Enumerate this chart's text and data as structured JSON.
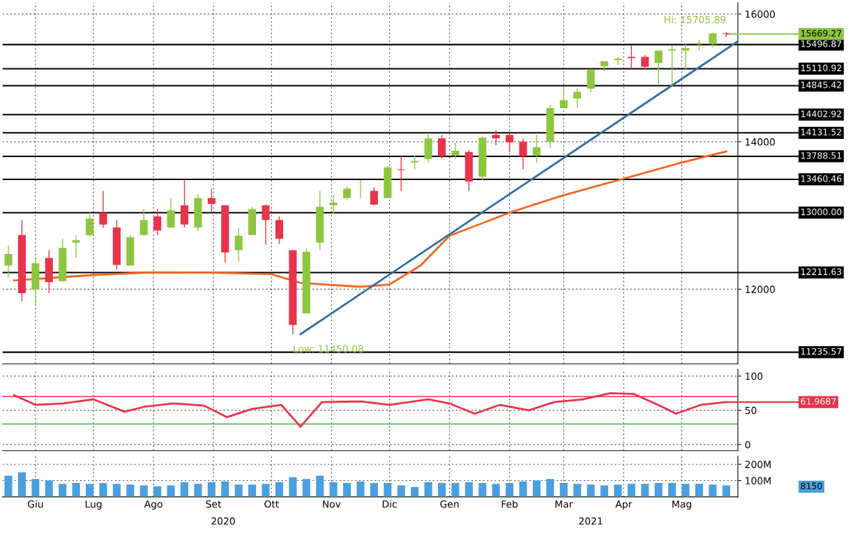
{
  "chart_data": [
    {
      "type": "candlestick",
      "log": true,
      "grid": true,
      "tick_labels": "y",
      "x": [
        "2020-06-01",
        "2020-06-08",
        "2020-06-15",
        "2020-06-22",
        "2020-06-29",
        "2020-07-06",
        "2020-07-13",
        "2020-07-20",
        "2020-07-27",
        "2020-08-03",
        "2020-08-10",
        "2020-08-17",
        "2020-08-24",
        "2020-08-31",
        "2020-09-07",
        "2020-09-14",
        "2020-09-21",
        "2020-09-28",
        "2020-10-05",
        "2020-10-12",
        "2020-10-19",
        "2020-10-26",
        "2020-11-02",
        "2020-11-09",
        "2020-11-16",
        "2020-11-23",
        "2020-11-30",
        "2020-12-07",
        "2020-12-14",
        "2020-12-21",
        "2020-12-28",
        "2021-01-04",
        "2021-01-11",
        "2021-01-18",
        "2021-01-25",
        "2021-02-01",
        "2021-02-08",
        "2021-02-15",
        "2021-02-22",
        "2021-03-01",
        "2021-03-08",
        "2021-03-15",
        "2021-03-22",
        "2021-03-29",
        "2021-04-05",
        "2021-04-12",
        "2021-04-19",
        "2021-04-26",
        "2021-05-03",
        "2021-05-10",
        "2021-05-17",
        "2021-05-24",
        "2021-05-31",
        "2021-06-07"
      ],
      "ohlc": [
        [
          12300,
          12560,
          12150,
          12450
        ],
        [
          12700,
          12900,
          11850,
          11950
        ],
        [
          12000,
          12400,
          11800,
          12330
        ],
        [
          12400,
          12500,
          11950,
          12090
        ],
        [
          12100,
          12650,
          12100,
          12530
        ],
        [
          12600,
          12700,
          12400,
          12630
        ],
        [
          12700,
          13000,
          12680,
          12920
        ],
        [
          13000,
          13300,
          12800,
          12840
        ],
        [
          12800,
          12900,
          12250,
          12310
        ],
        [
          12300,
          12700,
          12300,
          12670
        ],
        [
          12700,
          13050,
          12700,
          12900
        ],
        [
          12950,
          13050,
          12700,
          12760
        ],
        [
          12800,
          13200,
          12800,
          13030
        ],
        [
          13100,
          13460,
          12800,
          12840
        ],
        [
          12800,
          13250,
          12750,
          13200
        ],
        [
          13200,
          13330,
          13000,
          13120
        ],
        [
          13100,
          13100,
          12340,
          12470
        ],
        [
          12500,
          12800,
          12350,
          12690
        ],
        [
          12700,
          13080,
          12700,
          13050
        ],
        [
          13100,
          13110,
          12570,
          12900
        ],
        [
          12900,
          12950,
          12580,
          12650
        ],
        [
          12500,
          12500,
          11450,
          11560
        ],
        [
          11700,
          12520,
          11700,
          12480
        ],
        [
          12600,
          13300,
          12500,
          13080
        ],
        [
          13100,
          13240,
          12980,
          13140
        ],
        [
          13200,
          13360,
          13170,
          13330
        ],
        [
          13300,
          13450,
          13200,
          13300
        ],
        [
          13300,
          13350,
          13100,
          13110
        ],
        [
          13200,
          13650,
          13200,
          13630
        ],
        [
          13600,
          13800,
          13300,
          13590
        ],
        [
          13700,
          13800,
          13600,
          13720
        ],
        [
          13750,
          14130,
          13700,
          14050
        ],
        [
          14050,
          14100,
          13750,
          13790
        ],
        [
          13800,
          13980,
          13750,
          13870
        ],
        [
          13850,
          13880,
          13300,
          13430
        ],
        [
          13500,
          14070,
          13450,
          14060
        ],
        [
          14100,
          14170,
          13950,
          14050
        ],
        [
          14100,
          14100,
          13850,
          13990
        ],
        [
          14000,
          14050,
          13600,
          13790
        ],
        [
          13800,
          14100,
          13700,
          13920
        ],
        [
          14000,
          14550,
          13900,
          14500
        ],
        [
          14500,
          14800,
          14500,
          14620
        ],
        [
          14650,
          14800,
          14500,
          14750
        ],
        [
          14800,
          15100,
          14750,
          15100
        ],
        [
          15150,
          15230,
          15070,
          15230
        ],
        [
          15250,
          15300,
          15170,
          15270
        ],
        [
          15300,
          15490,
          15110,
          15280
        ],
        [
          15300,
          15330,
          15100,
          15140
        ],
        [
          15200,
          15400,
          14850,
          15400
        ],
        [
          15400,
          15480,
          14850,
          15420
        ],
        [
          15400,
          15500,
          15100,
          15440
        ],
        [
          15500,
          15570,
          15400,
          15520
        ],
        [
          15500,
          15690,
          15450,
          15680
        ],
        [
          15680,
          15700,
          15620,
          15669
        ]
      ],
      "series": [
        {
          "type": "line",
          "color": "#f26522",
          "x": [
            "2020-06-04",
            "2020-07-15",
            "2020-08-15",
            "2020-09-15",
            "2020-10-15",
            "2020-10-30",
            "2020-11-30",
            "2020-12-15",
            "2020-12-31",
            "2021-01-15",
            "2021-02-15",
            "2021-03-15",
            "2021-04-15",
            "2021-05-15",
            "2021-06-07"
          ],
          "values": [
            12110,
            12180,
            12215,
            12210,
            12190,
            12080,
            12030,
            12060,
            12300,
            12690,
            13000,
            13240,
            13470,
            13700,
            13860
          ]
        },
        {
          "type": "line",
          "color": "#2e6da4",
          "x": [
            "2020-10-30",
            "2021-06-13"
          ],
          "values": [
            11450,
            15550
          ]
        }
      ],
      "xlim": [
        "2020-05-29",
        "2021-06-13"
      ],
      "ylim": [
        11100,
        16190
      ],
      "yticks": [
        12000,
        14000,
        16000
      ],
      "ref_lines": [
        {
          "axis": "y",
          "value": 15496.87,
          "label": "15496.87",
          "color": "#000000"
        },
        {
          "axis": "y",
          "value": 15110.92,
          "label": "15110.92",
          "color": "#000000"
        },
        {
          "axis": "y",
          "value": 14845.42,
          "label": "14845.42",
          "color": "#000000"
        },
        {
          "axis": "y",
          "value": 14402.92,
          "label": "14402.92",
          "color": "#000000"
        },
        {
          "axis": "y",
          "value": 14131.52,
          "label": "14131.52",
          "color": "#000000"
        },
        {
          "axis": "y",
          "value": 13788.51,
          "label": "13788.51",
          "color": "#000000"
        },
        {
          "axis": "y",
          "value": 13460.46,
          "label": "13460.46",
          "color": "#000000"
        },
        {
          "axis": "y",
          "value": 13000.0,
          "label": "13000.00",
          "color": "#000000"
        },
        {
          "axis": "y",
          "value": 12211.63,
          "label": "12211.63",
          "color": "#000000"
        },
        {
          "axis": "y",
          "value": 11235.57,
          "label": "11235.57",
          "color": "#000000"
        }
      ],
      "annotations": [
        {
          "text": "Hi: 15705.89",
          "x": "2021-06-07",
          "y": 15700
        },
        {
          "text": "Low: 11450.08",
          "x": "2020-10-26",
          "y": 11450
        },
        {
          "text": "15669.27",
          "x": "2021-06-07",
          "y": 15669
        }
      ]
    },
    {
      "type": "line",
      "grid": true,
      "tick_labels": "y",
      "x": [
        "2020-06-04",
        "2020-06-15",
        "2020-06-29",
        "2020-07-15",
        "2020-07-31",
        "2020-08-10",
        "2020-08-25",
        "2020-09-10",
        "2020-09-22",
        "2020-10-05",
        "2020-10-20",
        "2020-10-30",
        "2020-11-10",
        "2020-11-30",
        "2020-12-15",
        "2021-01-04",
        "2021-01-15",
        "2021-01-28",
        "2021-02-10",
        "2021-02-25",
        "2021-03-10",
        "2021-03-25",
        "2021-04-08",
        "2021-04-20",
        "2021-05-05",
        "2021-05-12",
        "2021-05-25",
        "2021-06-07"
      ],
      "series": [
        {
          "color": "#e8334a",
          "values": [
            72,
            58,
            60,
            66,
            48,
            55,
            60,
            57,
            40,
            52,
            58,
            26,
            62,
            63,
            58,
            66,
            60,
            45,
            58,
            50,
            62,
            66,
            75,
            74,
            55,
            45,
            58,
            62
          ]
        }
      ],
      "xlim": [
        "2020-05-29",
        "2021-06-13"
      ],
      "ylim": [
        -9,
        110
      ],
      "yticks": [
        0,
        50,
        100
      ],
      "ref_lines": [
        {
          "axis": "y",
          "value": 70,
          "color": "#e8334a"
        },
        {
          "axis": "y",
          "value": 30,
          "color": "#39b54a"
        }
      ],
      "annotations": [
        {
          "text": "61.9687",
          "x": "2021-06-07",
          "y": 62
        }
      ]
    },
    {
      "type": "bar",
      "grid": true,
      "x": [
        "2020-06-01",
        "2020-06-08",
        "2020-06-15",
        "2020-06-22",
        "2020-06-29",
        "2020-07-06",
        "2020-07-13",
        "2020-07-20",
        "2020-07-27",
        "2020-08-03",
        "2020-08-10",
        "2020-08-17",
        "2020-08-24",
        "2020-08-31",
        "2020-09-07",
        "2020-09-14",
        "2020-09-21",
        "2020-09-28",
        "2020-10-05",
        "2020-10-12",
        "2020-10-19",
        "2020-10-26",
        "2020-11-02",
        "2020-11-09",
        "2020-11-16",
        "2020-11-23",
        "2020-11-30",
        "2020-12-07",
        "2020-12-14",
        "2020-12-21",
        "2020-12-28",
        "2021-01-04",
        "2021-01-11",
        "2021-01-18",
        "2021-01-25",
        "2021-02-01",
        "2021-02-08",
        "2021-02-15",
        "2021-02-22",
        "2021-03-01",
        "2021-03-08",
        "2021-03-15",
        "2021-03-22",
        "2021-03-29",
        "2021-04-05",
        "2021-04-12",
        "2021-04-19",
        "2021-04-26",
        "2021-05-03",
        "2021-05-10",
        "2021-05-17",
        "2021-05-24",
        "2021-05-31",
        "2021-06-07"
      ],
      "series": [
        {
          "color": "#4a9fe0",
          "values": [
            130,
            150,
            110,
            100,
            80,
            85,
            80,
            85,
            80,
            75,
            70,
            65,
            70,
            90,
            80,
            90,
            95,
            75,
            75,
            80,
            90,
            120,
            110,
            130,
            90,
            85,
            95,
            85,
            85,
            70,
            60,
            90,
            85,
            85,
            90,
            85,
            80,
            85,
            95,
            100,
            110,
            85,
            80,
            75,
            70,
            75,
            80,
            80,
            85,
            85,
            80,
            80,
            75,
            70
          ]
        }
      ],
      "xlim": [
        "2020-05-29",
        "2021-06-13"
      ],
      "ylim": [
        0,
        250
      ],
      "yticks": [
        {
          "value": 100,
          "label": "100M"
        },
        {
          "value": 200,
          "label": "200M"
        }
      ],
      "xticks": [
        {
          "value": "2020-06-15",
          "label": "Giu"
        },
        {
          "value": "2020-07-15",
          "label": "Lug"
        },
        {
          "value": "2020-08-15",
          "label": "Ago"
        },
        {
          "value": "2020-09-15",
          "label": "Set"
        },
        {
          "value": "2020-10-15",
          "label": "Ott"
        },
        {
          "value": "2020-11-15",
          "label": "Nov"
        },
        {
          "value": "2020-12-15",
          "label": "Dic"
        },
        {
          "value": "2021-01-15",
          "label": "Gen"
        },
        {
          "value": "2021-02-15",
          "label": "Feb"
        },
        {
          "value": "2021-03-15",
          "label": "Mar"
        },
        {
          "value": "2021-04-15",
          "label": "Apr"
        },
        {
          "value": "2021-05-15",
          "label": "Mag"
        }
      ],
      "annotations": [
        "8150",
        "2020",
        "2021"
      ]
    }
  ]
}
